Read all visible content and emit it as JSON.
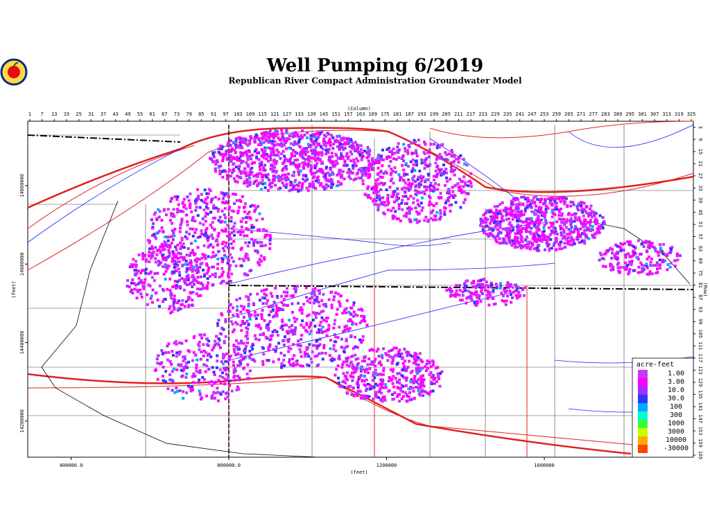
{
  "title": "Well Pumping 6/2019",
  "subtitle": "Republican River Compact Administration Groundwater Model",
  "column_axis": {
    "label": "(Column)",
    "lim": [
      0,
      326
    ],
    "ticks": [
      1,
      7,
      13,
      19,
      25,
      31,
      37,
      43,
      49,
      55,
      61,
      67,
      73,
      79,
      85,
      91,
      97,
      103,
      109,
      115,
      121,
      127,
      133,
      139,
      145,
      151,
      157,
      163,
      169,
      175,
      181,
      187,
      193,
      199,
      205,
      211,
      217,
      223,
      229,
      235,
      241,
      247,
      253,
      259,
      265,
      271,
      277,
      283,
      289,
      295,
      301,
      307,
      313,
      319,
      325
    ]
  },
  "row_axis": {
    "label": "(Row)",
    "lim": [
      0,
      166
    ],
    "ticks": [
      3,
      9,
      15,
      21,
      27,
      33,
      39,
      45,
      51,
      57,
      63,
      69,
      75,
      81,
      87,
      93,
      99,
      105,
      111,
      117,
      123,
      129,
      135,
      141,
      147,
      153,
      159,
      165
    ]
  },
  "x_axis": {
    "label": "(feet)",
    "lim": [
      290000,
      1978000
    ],
    "ticks": [
      {
        "value": 400000,
        "label": "400000.0"
      },
      {
        "value": 800000,
        "label": "800000.0"
      },
      1200000,
      1600000
    ]
  },
  "y_axis": {
    "label": "(feet)",
    "lim": [
      14108000,
      14964000
    ],
    "ticks": [
      14800000,
      14600000,
      14400000,
      14200000
    ]
  },
  "legend": {
    "title": "acre-feet",
    "entries": [
      {
        "label": "1.00",
        "color": "#cc33ff"
      },
      {
        "label": "3.00",
        "color": "#ff00ff"
      },
      {
        "label": "10.0",
        "color": "#9933ff"
      },
      {
        "label": "30.0",
        "color": "#3333ff"
      },
      {
        "label": "100",
        "color": "#00aaff"
      },
      {
        "label": "300",
        "color": "#00ffcc"
      },
      {
        "label": "1000",
        "color": "#33ff33"
      },
      {
        "label": "3000",
        "color": "#ccff00"
      },
      {
        "label": "10000",
        "color": "#ffaa00"
      },
      {
        "label": "-30000",
        "color": "#ff4400"
      }
    ]
  }
}
